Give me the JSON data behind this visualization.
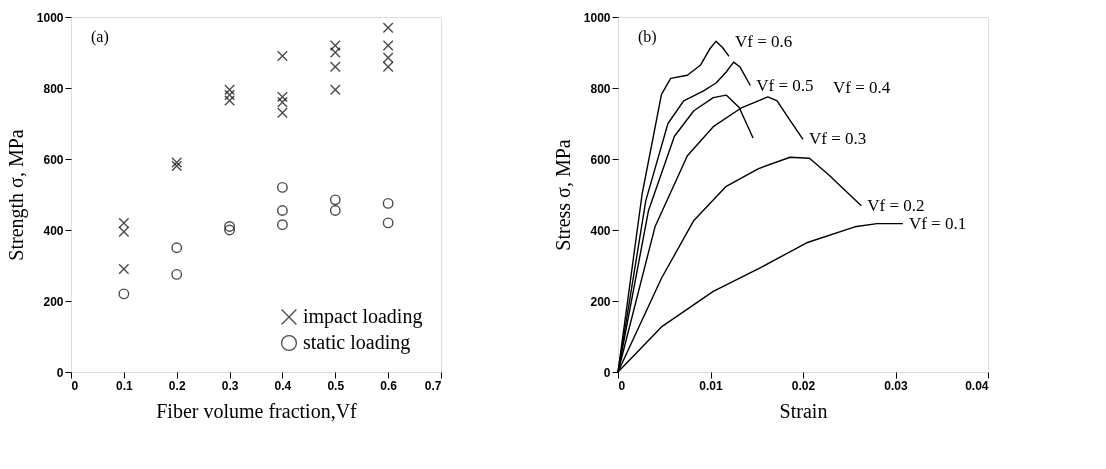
{
  "chart_data": [
    {
      "type": "scatter",
      "xlabel": "Fiber volume fraction,Vf",
      "ylabel": "Strength σ, MPa",
      "annotations": [
        "(a)"
      ],
      "xlim": [
        0,
        0.7
      ],
      "xticks": [
        0,
        0.1,
        0.2,
        0.3,
        0.4,
        0.5,
        0.6,
        0.7
      ],
      "ylim": [
        0,
        1000
      ],
      "yticks": [
        0,
        200,
        400,
        600,
        800,
        1000
      ],
      "legend": "bottom right",
      "series": [
        {
          "name": "impact loading",
          "color": "#000000",
          "marker": "cross",
          "x": [
            0.1,
            0.1,
            0.1,
            0.2,
            0.2,
            0.3,
            0.3,
            0.3,
            0.4,
            0.4,
            0.4,
            0.4,
            0.5,
            0.5,
            0.5,
            0.5,
            0.6,
            0.6,
            0.6,
            0.6
          ],
          "values": [
            420,
            395,
            290,
            590,
            580,
            795,
            780,
            765,
            890,
            775,
            760,
            730,
            920,
            900,
            860,
            795,
            970,
            920,
            885,
            860
          ]
        },
        {
          "name": "static loading",
          "color": "#000000",
          "marker": "circle",
          "x": [
            0.1,
            0.2,
            0.2,
            0.3,
            0.3,
            0.4,
            0.4,
            0.4,
            0.5,
            0.5,
            0.6,
            0.6
          ],
          "values": [
            220,
            350,
            275,
            410,
            400,
            520,
            455,
            415,
            485,
            455,
            475,
            420
          ]
        }
      ]
    },
    {
      "type": "line",
      "xlabel": "Strain",
      "ylabel": "Stress σ, MPa",
      "xlim": [
        0,
        0.04
      ],
      "xticks": [
        0,
        0.01,
        0.02,
        0.03,
        0.04
      ],
      "ylim": [
        0,
        1000
      ],
      "yticks": [
        0,
        200,
        400,
        600,
        800,
        1000
      ],
      "annotations": [
        "(b)"
      ],
      "series": [
        {
          "name": "Vf = 0.6",
          "color": "#000000",
          "x": [
            0,
            0.0026,
            0.0047,
            0.0057,
            0.0075,
            0.0089,
            0.0099,
            0.0106,
            0.0113,
            0.012
          ],
          "values": [
            0,
            500,
            782,
            827,
            836,
            864,
            909,
            932,
            914,
            889
          ]
        },
        {
          "name": "Vf = 0.5",
          "color": "#000000",
          "x": [
            0,
            0.003,
            0.0054,
            0.0071,
            0.0092,
            0.0106,
            0.0117,
            0.0125,
            0.0132,
            0.0143
          ],
          "values": [
            0,
            482,
            700,
            764,
            791,
            814,
            845,
            873,
            859,
            807
          ]
        },
        {
          "name": "Vf = 0.4",
          "color": "#000000",
          "x": [
            0,
            0.0033,
            0.0061,
            0.0082,
            0.0103,
            0.0117,
            0.0131,
            0.0146
          ],
          "values": [
            0,
            455,
            664,
            736,
            773,
            780,
            745,
            659
          ]
        },
        {
          "name": "Vf = 0.3",
          "color": "#000000",
          "x": [
            0,
            0.004,
            0.0075,
            0.0103,
            0.0134,
            0.0162,
            0.0172,
            0.0186,
            0.02
          ],
          "values": [
            0,
            409,
            609,
            691,
            745,
            775,
            764,
            709,
            655
          ]
        },
        {
          "name": "Vf = 0.2",
          "color": "#000000",
          "x": [
            0,
            0.0047,
            0.0082,
            0.0117,
            0.0152,
            0.0186,
            0.0207,
            0.0228,
            0.0263
          ],
          "values": [
            0,
            264,
            427,
            523,
            573,
            605,
            602,
            555,
            468
          ]
        },
        {
          "name": "Vf = 0.1",
          "color": "#000000",
          "x": [
            0,
            0.0047,
            0.0103,
            0.0152,
            0.0204,
            0.0256,
            0.028,
            0.0308
          ],
          "values": [
            0,
            127,
            227,
            291,
            364,
            409,
            418,
            418
          ]
        }
      ]
    }
  ]
}
